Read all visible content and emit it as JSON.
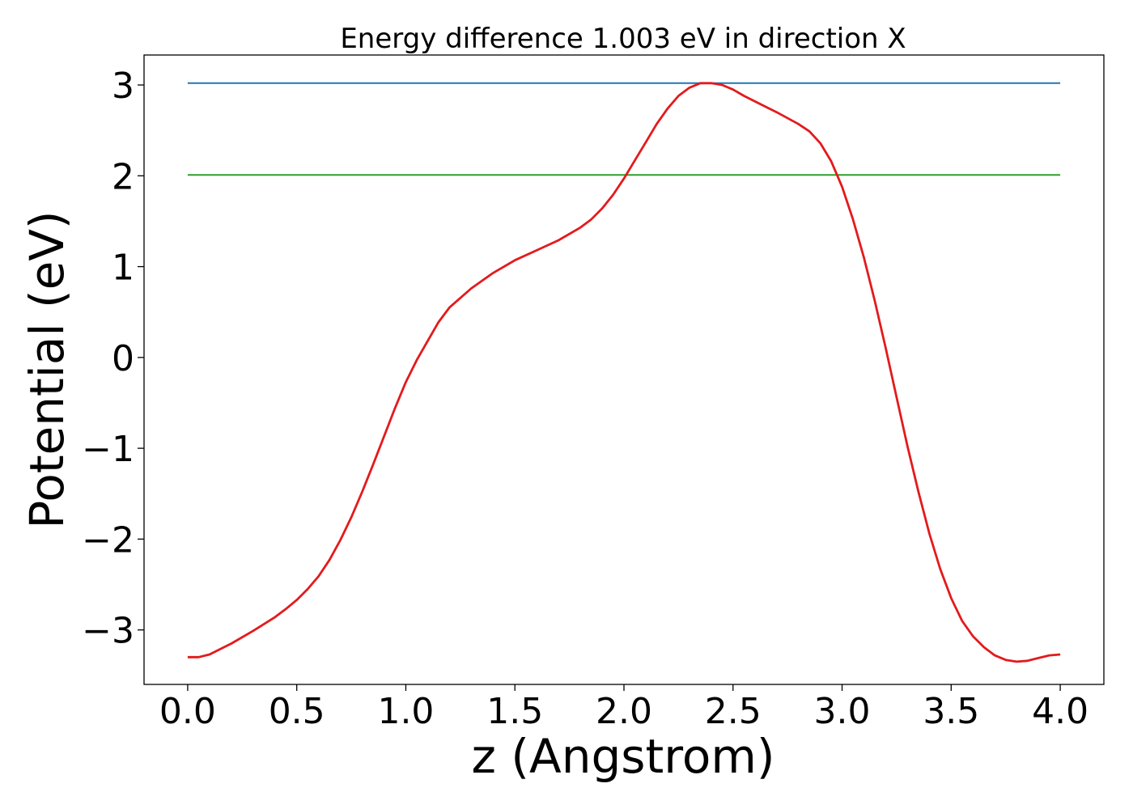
{
  "chart_data": {
    "type": "line",
    "title": "Energy difference 1.003 eV in direction X",
    "xlabel": "z (Angstrom)",
    "ylabel": "Potential (eV)",
    "xlim": [
      -0.2,
      4.2
    ],
    "ylim": [
      -3.6,
      3.33
    ],
    "xticks": [
      {
        "value": 0.0,
        "label": "0.0"
      },
      {
        "value": 0.5,
        "label": "0.5"
      },
      {
        "value": 1.0,
        "label": "1.0"
      },
      {
        "value": 1.5,
        "label": "1.5"
      },
      {
        "value": 2.0,
        "label": "2.0"
      },
      {
        "value": 2.5,
        "label": "2.5"
      },
      {
        "value": 3.0,
        "label": "3.0"
      },
      {
        "value": 3.5,
        "label": "3.5"
      },
      {
        "value": 4.0,
        "label": "4.0"
      }
    ],
    "yticks": [
      {
        "value": -3,
        "label": "−3"
      },
      {
        "value": -2,
        "label": "−2"
      },
      {
        "value": -1,
        "label": "−1"
      },
      {
        "value": 0,
        "label": "0"
      },
      {
        "value": 1,
        "label": "1"
      },
      {
        "value": 2,
        "label": "2"
      },
      {
        "value": 3,
        "label": "3"
      }
    ],
    "grid": false,
    "legend": "none",
    "series": [
      {
        "color": "#1f77b4",
        "x": [
          0.0,
          4.0
        ],
        "y": [
          3.02,
          3.02
        ]
      },
      {
        "color": "#2ca02c",
        "x": [
          0.0,
          4.0
        ],
        "y": [
          2.01,
          2.01
        ]
      },
      {
        "color": "#e31a1c",
        "x": [
          0.0,
          0.05,
          0.1,
          0.15,
          0.2,
          0.3,
          0.4,
          0.45,
          0.5,
          0.55,
          0.6,
          0.65,
          0.7,
          0.75,
          0.8,
          0.85,
          0.9,
          0.95,
          1.0,
          1.05,
          1.1,
          1.15,
          1.2,
          1.3,
          1.4,
          1.5,
          1.6,
          1.7,
          1.8,
          1.85,
          1.9,
          1.95,
          2.0,
          2.05,
          2.1,
          2.15,
          2.2,
          2.25,
          2.3,
          2.35,
          2.4,
          2.45,
          2.5,
          2.55,
          2.6,
          2.7,
          2.8,
          2.85,
          2.9,
          2.95,
          3.0,
          3.05,
          3.1,
          3.15,
          3.2,
          3.25,
          3.3,
          3.35,
          3.4,
          3.45,
          3.5,
          3.55,
          3.6,
          3.65,
          3.7,
          3.75,
          3.8,
          3.85,
          3.9,
          3.95,
          4.0
        ],
        "y": [
          -3.3,
          -3.3,
          -3.27,
          -3.21,
          -3.15,
          -3.01,
          -2.86,
          -2.77,
          -2.67,
          -2.55,
          -2.41,
          -2.23,
          -2.01,
          -1.76,
          -1.48,
          -1.18,
          -0.87,
          -0.56,
          -0.27,
          -0.03,
          0.18,
          0.39,
          0.55,
          0.76,
          0.93,
          1.07,
          1.18,
          1.29,
          1.43,
          1.52,
          1.64,
          1.79,
          1.97,
          2.17,
          2.37,
          2.57,
          2.74,
          2.88,
          2.97,
          3.02,
          3.02,
          3.0,
          2.95,
          2.88,
          2.82,
          2.7,
          2.57,
          2.49,
          2.36,
          2.16,
          1.88,
          1.52,
          1.1,
          0.62,
          0.1,
          -0.44,
          -0.98,
          -1.48,
          -1.94,
          -2.33,
          -2.65,
          -2.9,
          -3.07,
          -3.19,
          -3.28,
          -3.33,
          -3.35,
          -3.34,
          -3.31,
          -3.28,
          -3.27
        ]
      }
    ]
  }
}
